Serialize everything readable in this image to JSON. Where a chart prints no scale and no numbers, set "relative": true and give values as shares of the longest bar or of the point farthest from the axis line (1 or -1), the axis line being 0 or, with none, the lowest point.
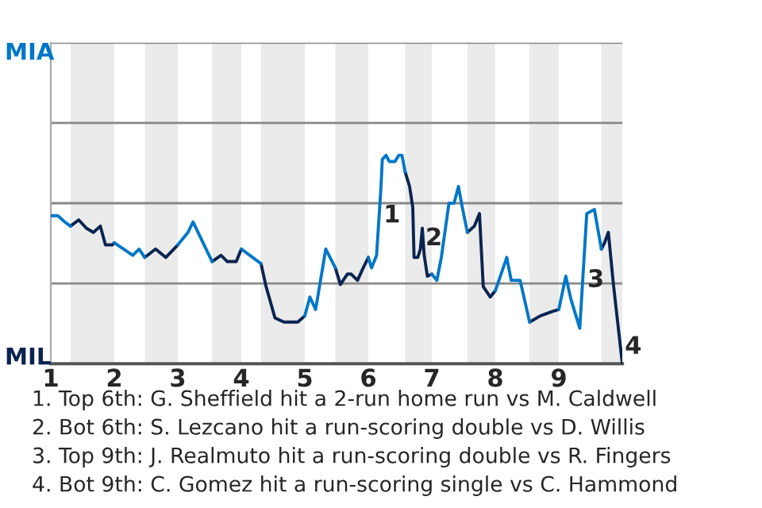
{
  "chart_data": {
    "type": "line",
    "relative": true,
    "xlim": [
      1,
      10
    ],
    "xticks": [
      1,
      2,
      3,
      4,
      5,
      6,
      7,
      8,
      9
    ],
    "marker": "none",
    "line_style": "solid",
    "ref_lines": [
      {
        "axis": "y",
        "value": 0.385,
        "color": "#888888"
      },
      {
        "axis": "y",
        "value": 0.77,
        "color": "#888888"
      },
      {
        "axis": "y",
        "value": 1.155,
        "color": "#888888"
      },
      {
        "axis": "y",
        "value": 1.54,
        "color": "#888888"
      }
    ],
    "bands": [
      {
        "axis": "x",
        "from": 1.31,
        "to": 2,
        "color": "#ebebeb"
      },
      {
        "axis": "x",
        "from": 2.48,
        "to": 3,
        "color": "#ebebeb"
      },
      {
        "axis": "x",
        "from": 3.54,
        "to": 4,
        "color": "#ebebeb"
      },
      {
        "axis": "x",
        "from": 4.31,
        "to": 5,
        "color": "#ebebeb"
      },
      {
        "axis": "x",
        "from": 5.48,
        "to": 6,
        "color": "#ebebeb"
      },
      {
        "axis": "x",
        "from": 6.58,
        "to": 7,
        "color": "#ebebeb"
      },
      {
        "axis": "x",
        "from": 7.56,
        "to": 8,
        "color": "#ebebeb"
      },
      {
        "axis": "x",
        "from": 8.54,
        "to": 9,
        "color": "#ebebeb"
      },
      {
        "axis": "x",
        "from": 9.67,
        "to": 10,
        "color": "#ebebeb"
      }
    ],
    "series": [
      {
        "name": "MIA",
        "color": "#0077c8",
        "x": [
          1,
          1.11,
          1.22,
          1.31,
          1.44,
          2,
          2.29,
          2.39,
          2.48,
          2.65,
          3,
          3.16,
          3.24,
          3.54,
          3.68,
          4,
          4.31,
          4.39,
          5,
          5.08,
          5.17,
          5.33,
          5.48,
          5.56,
          6,
          6.05,
          6.13,
          6.2,
          6.22,
          6.28,
          6.33,
          6.42,
          6.48,
          6.53,
          6.58,
          6.65,
          7,
          7.08,
          7.15,
          7.27,
          7.35,
          7.42,
          7.48,
          7.56,
          7.67,
          8,
          8.18,
          8.25,
          8.39,
          8.54,
          8.71,
          9,
          9.11,
          9.19,
          9.33,
          9.44,
          9.56,
          9.67
        ],
        "values": [
          0.71,
          0.71,
          0.68,
          0.66,
          null,
          0.58,
          0.52,
          0.55,
          0.51,
          null,
          0.57,
          0.63,
          0.68,
          0.49,
          null,
          0.55,
          0.48,
          null,
          0.23,
          0.32,
          0.26,
          0.55,
          0.46,
          null,
          0.51,
          0.46,
          0.52,
          0.85,
          0.98,
          1,
          0.97,
          0.97,
          1,
          1,
          0.92,
          null,
          0.43,
          0.4,
          0.51,
          0.77,
          0.77,
          0.85,
          0.75,
          0.63,
          null,
          0.35,
          0.51,
          0.4,
          0.4,
          0.2,
          null,
          0.26,
          0.42,
          0.31,
          0.17,
          0.72,
          0.74,
          0.55
        ]
      },
      {
        "name": "MIL",
        "color": "#0a2351",
        "x": [
          1.31,
          1.44,
          1.56,
          1.67,
          1.78,
          1.86,
          1.97,
          2,
          2.29,
          2.48,
          2.65,
          2.81,
          3,
          3.16,
          3.54,
          3.68,
          3.78,
          3.92,
          4,
          4.11,
          4.31,
          4.39,
          4.53,
          4.67,
          4.75,
          4.83,
          4.89,
          5,
          5.08,
          5.48,
          5.56,
          5.67,
          5.73,
          5.83,
          5.92,
          6,
          6.05,
          6.58,
          6.65,
          6.7,
          6.72,
          6.78,
          6.82,
          6.85,
          6.88,
          6.93,
          7,
          7.08,
          7.56,
          7.67,
          7.75,
          7.81,
          7.92,
          8,
          8.18,
          8.54,
          8.71,
          8.89,
          9,
          9.11,
          9.67,
          9.72,
          9.78,
          9.86,
          10
        ],
        "values": [
          0.66,
          0.69,
          0.65,
          0.63,
          0.66,
          0.57,
          0.57,
          0.58,
          null,
          0.51,
          0.55,
          0.51,
          0.57,
          null,
          0.49,
          0.52,
          0.49,
          0.49,
          0.55,
          null,
          0.48,
          0.37,
          0.22,
          0.2,
          0.2,
          0.2,
          0.2,
          0.23,
          null,
          0.46,
          0.38,
          0.43,
          0.43,
          0.4,
          0.46,
          0.51,
          null,
          0.92,
          0.85,
          0.75,
          0.51,
          0.51,
          0.55,
          0.65,
          0.52,
          0.42,
          0.43,
          null,
          0.63,
          0.66,
          0.72,
          0.37,
          0.32,
          0.35,
          null,
          0.2,
          0.23,
          0.25,
          0.26,
          null,
          0.55,
          0.58,
          0.63,
          0.38,
          0
        ]
      }
    ],
    "annotations": [
      {
        "text": "1",
        "x": 6.17,
        "y": 0.71
      },
      {
        "text": "2",
        "x": 6.83,
        "y": 0.6
      },
      {
        "text": "3",
        "x": 9.38,
        "y": 0.4
      },
      {
        "text": "4",
        "x": 9.97,
        "y": 0.08
      },
      "1. Top 6th: G. Sheffield hit a 2-run home run vs M. Caldwell",
      "2. Bot 6th: S. Lezcano hit a run-scoring double vs D. Willis",
      "3. Top 9th: J. Realmuto hit a run-scoring double vs R. Fingers",
      "4. Bot 9th: C. Gomez hit a run-scoring single vs C. Hammond"
    ]
  }
}
